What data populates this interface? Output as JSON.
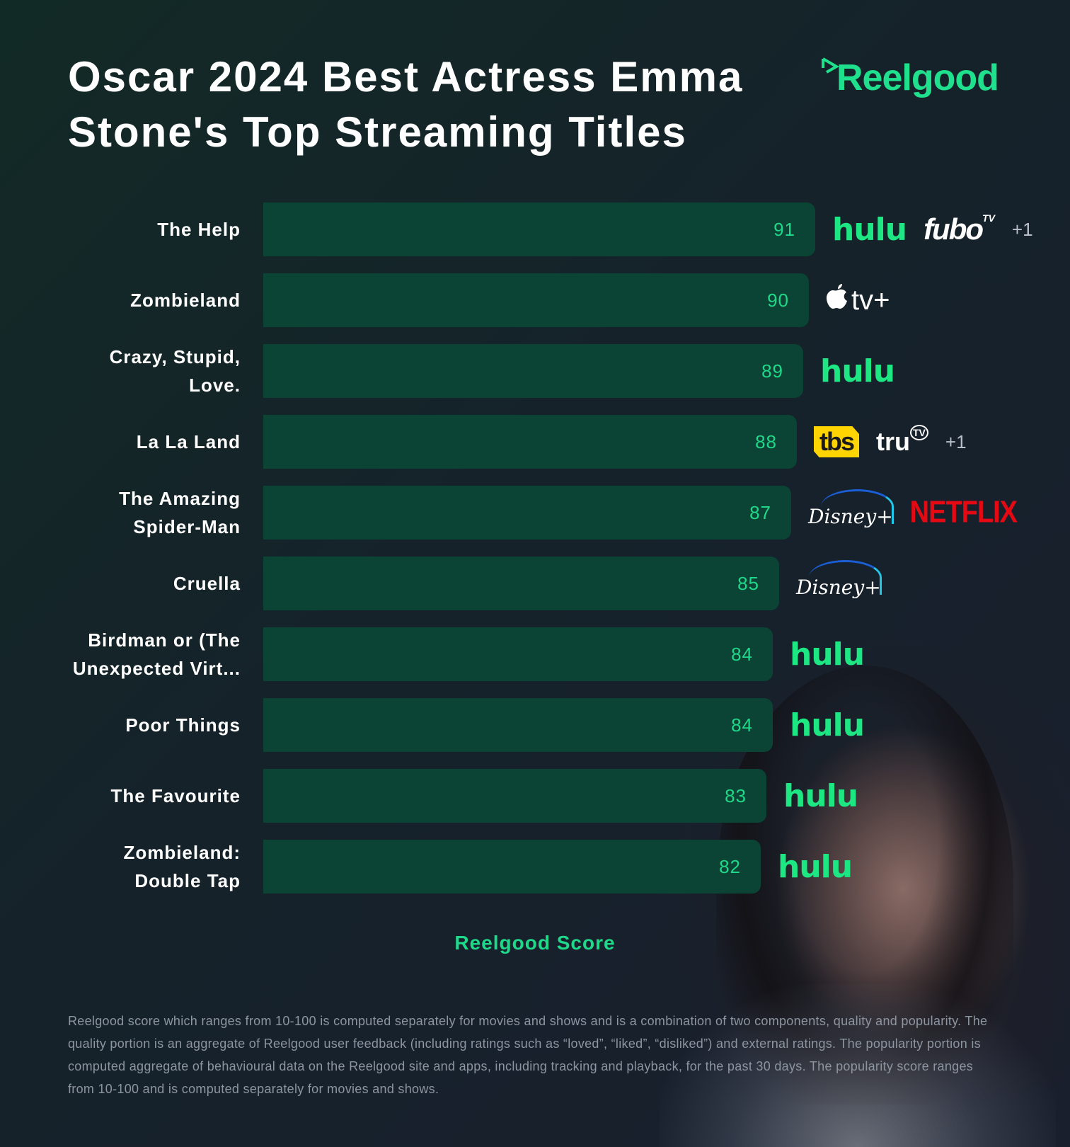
{
  "header": {
    "title": "Oscar 2024 Best Actress Emma Stone's Top Streaming Titles",
    "brand": "Reelgood"
  },
  "colors": {
    "background": "#15222a",
    "bar": "#0b4334",
    "score_text": "#1fd98a",
    "brand_green": "#1fe08c",
    "hulu": "#1ce783",
    "netflix": "#e50914",
    "tbs": "#ffd400"
  },
  "chart_data": {
    "type": "bar",
    "orientation": "horizontal",
    "title": "Oscar 2024 Best Actress Emma Stone's Top Streaming Titles",
    "xlabel": "Reelgood Score",
    "ylabel": "",
    "categories": [
      "The Help",
      "Zombieland",
      "Crazy, Stupid, Love.",
      "La La Land",
      "The Amazing Spider-Man",
      "Cruella",
      "Birdman or (The Unexpected Virt...",
      "Poor Things",
      "The Favourite",
      "Zombieland: Double Tap"
    ],
    "values": [
      91,
      90,
      89,
      88,
      87,
      85,
      84,
      84,
      83,
      82
    ],
    "grid": false,
    "legend": null
  },
  "rows": [
    {
      "label": "The Help",
      "score": "91",
      "providers": [
        "hulu",
        "fubo"
      ],
      "extra": "+1"
    },
    {
      "label": "Zombieland",
      "score": "90",
      "providers": [
        "apple-tv-plus"
      ],
      "extra": ""
    },
    {
      "label": "Crazy, Stupid, Love.",
      "score": "89",
      "providers": [
        "hulu"
      ],
      "extra": ""
    },
    {
      "label": "La La Land",
      "score": "88",
      "providers": [
        "tbs",
        "trutv"
      ],
      "extra": "+1"
    },
    {
      "label": "The Amazing Spider-Man",
      "score": "87",
      "providers": [
        "disney-plus",
        "netflix"
      ],
      "extra": ""
    },
    {
      "label": "Cruella",
      "score": "85",
      "providers": [
        "disney-plus"
      ],
      "extra": ""
    },
    {
      "label": "Birdman or (The Unexpected Virt...",
      "score": "84",
      "providers": [
        "hulu"
      ],
      "extra": ""
    },
    {
      "label": "Poor Things",
      "score": "84",
      "providers": [
        "hulu"
      ],
      "extra": ""
    },
    {
      "label": "The Favourite",
      "score": "83",
      "providers": [
        "hulu"
      ],
      "extra": ""
    },
    {
      "label": "Zombieland: Double Tap",
      "score": "82",
      "providers": [
        "hulu"
      ],
      "extra": ""
    }
  ],
  "logo_text": {
    "hulu": "hulu",
    "fubo": "fubo",
    "fubo_tv": "TV",
    "appletv": "tv+",
    "tbs": "tbs",
    "trutv": "tru",
    "trutv_badge": "TV",
    "disney": "Disney+",
    "netflix": "NETFLIX"
  },
  "axis": {
    "xlabel": "Reelgood Score"
  },
  "footnote": "Reelgood score which ranges from 10-100 is computed separately for movies and shows and is a combination of two components, quality and popularity. The quality portion is an aggregate of Reelgood user feedback (including ratings such as “loved”, “liked”, “disliked”) and external ratings. The popularity portion is computed aggregate of behavioural data on the Reelgood site and apps, including tracking and playback, for the past 30 days. The popularity score ranges from 10-100 and is computed separately for movies and shows."
}
